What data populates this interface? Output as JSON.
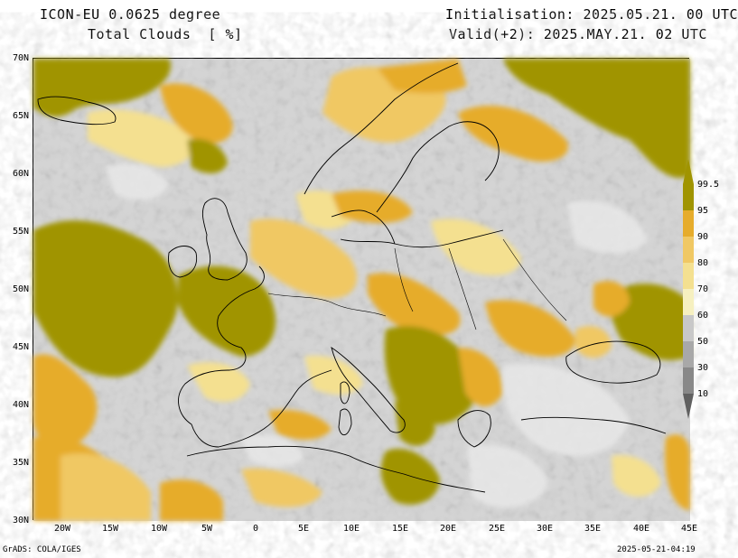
{
  "header": {
    "model": "ICON-EU 0.0625 degree",
    "variable": "Total Clouds  [ %]",
    "initialisation": "Initialisation: 2025.05.21. 00 UTC",
    "valid": "Valid(+2): 2025.MAY.21. 02 UTC"
  },
  "map": {
    "lat_labels": [
      "70N",
      "65N",
      "60N",
      "55N",
      "50N",
      "45N",
      "40N",
      "35N",
      "30N"
    ],
    "lon_labels": [
      "20W",
      "15W",
      "10W",
      "5W",
      "0",
      "5E",
      "10E",
      "15E",
      "20E",
      "25E",
      "30E",
      "35E",
      "40E",
      "45E"
    ]
  },
  "colorbar": {
    "labels": [
      "99.5",
      "95",
      "90",
      "80",
      "70",
      "60",
      "50",
      "30",
      "10"
    ],
    "colors": [
      "#a09400",
      "#e6ac2c",
      "#f0c864",
      "#f4e090",
      "#f6f0c0",
      "#c8c8c8",
      "#a8a8a8",
      "#888888",
      "#606060"
    ]
  },
  "footer": {
    "left": "GrADS: COLA/IGES",
    "right": "2025-05-21-04:19"
  }
}
